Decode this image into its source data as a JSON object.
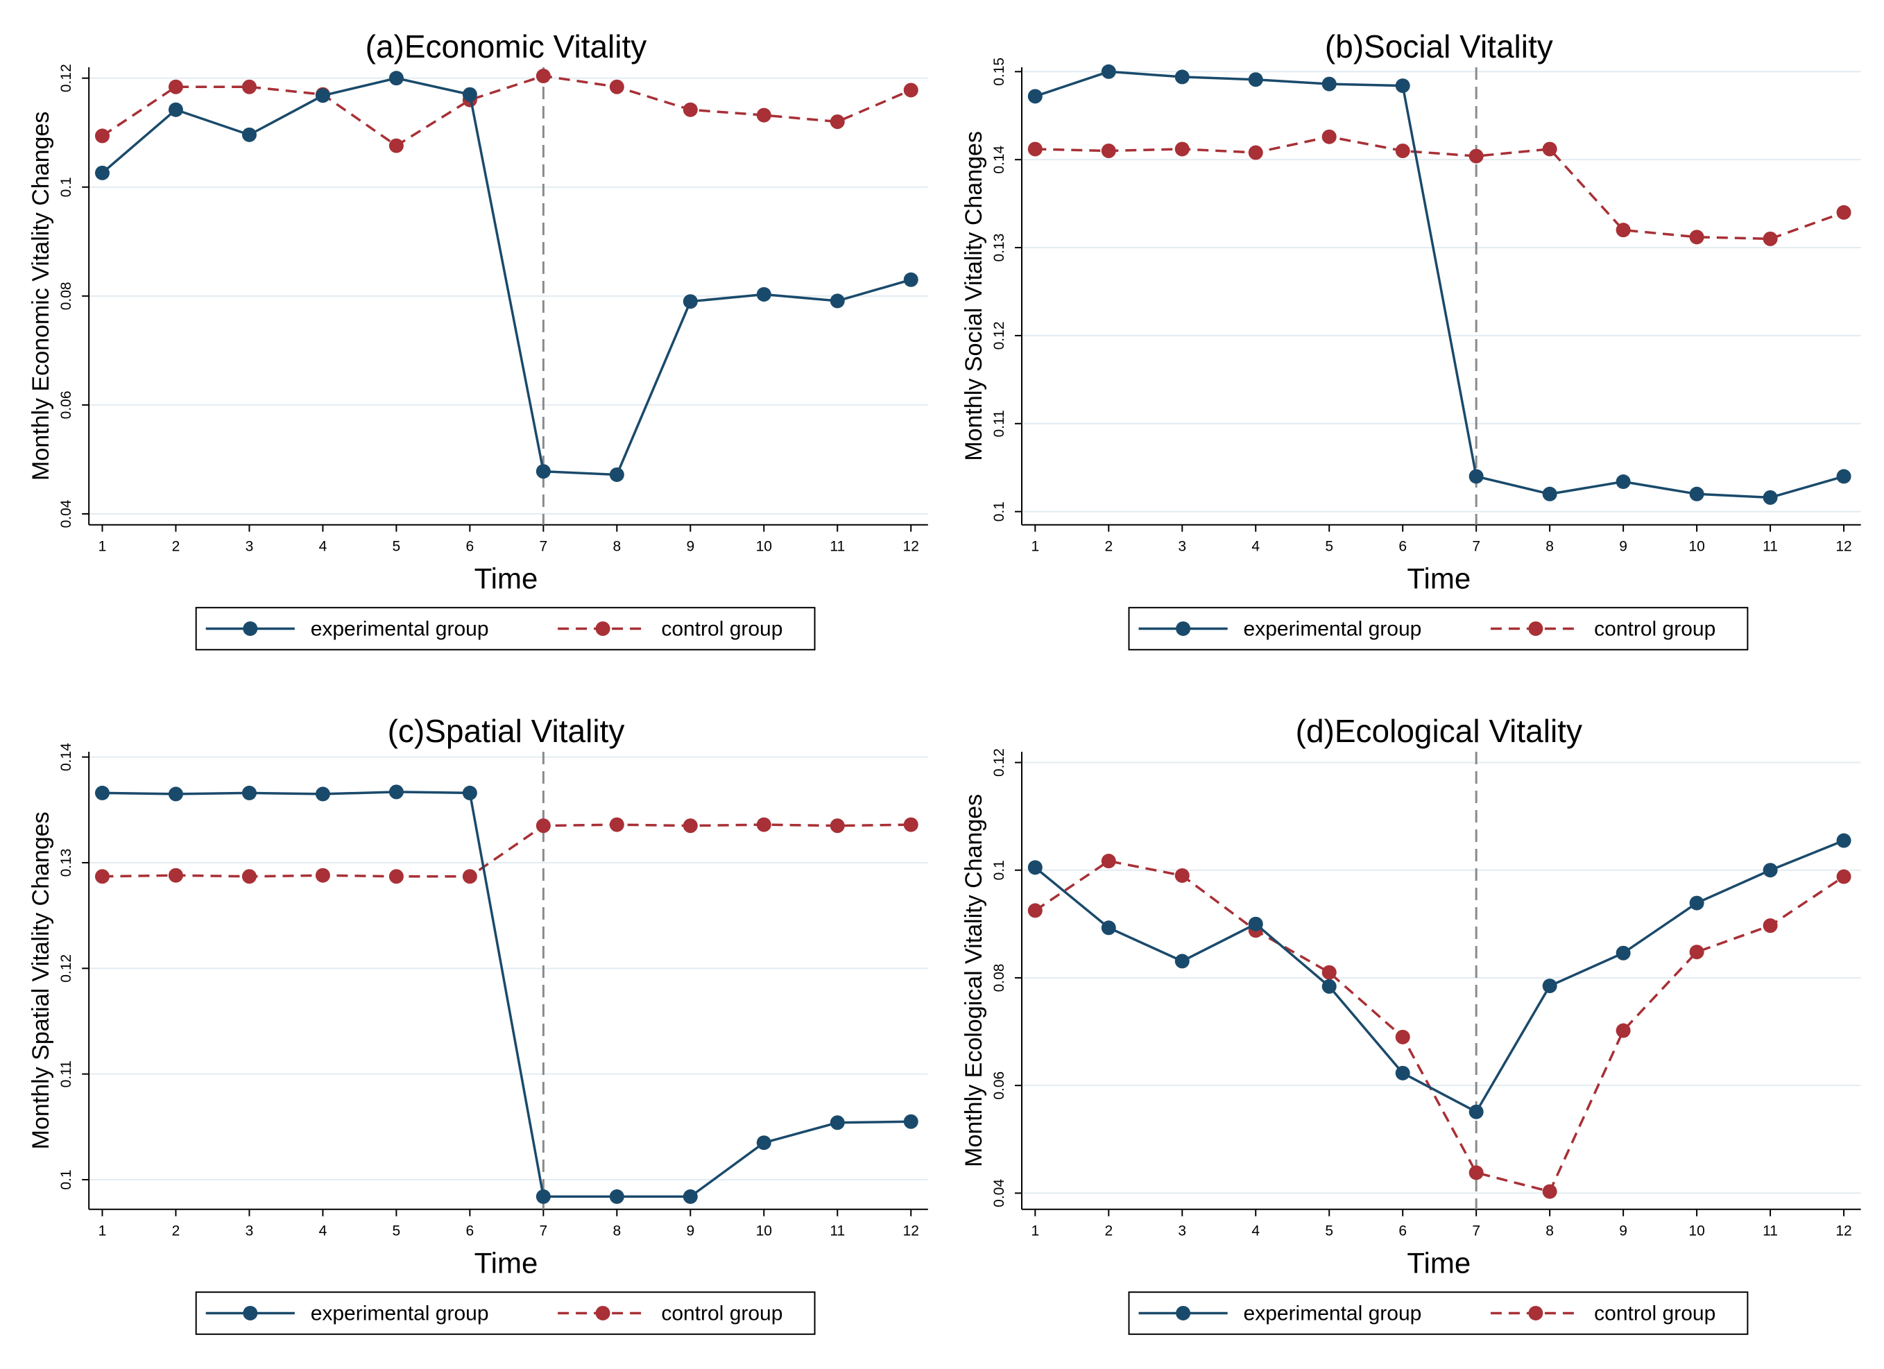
{
  "colors": {
    "experimental": "#1a4a6b",
    "control": "#a83036",
    "grid": "#e3ecf1",
    "vline": "#8a8a8a"
  },
  "legend": {
    "experimental_label": "experimental group",
    "control_label": "control group"
  },
  "chart_data": [
    {
      "type": "line",
      "title": "(a)Economic Vitality",
      "xlabel": "Time",
      "ylabel": "Monthly Economic Vitality Changes",
      "x": [
        1,
        2,
        3,
        4,
        5,
        6,
        7,
        8,
        9,
        10,
        11,
        12
      ],
      "ylim": [
        0.038,
        0.122
      ],
      "yticks": [
        0.04,
        0.06,
        0.08,
        0.1,
        0.12
      ],
      "ytick_labels": [
        "0.04",
        "0.06",
        "0.08",
        "0.1",
        "0.12"
      ],
      "xtick_labels": [
        "1",
        "2",
        "3",
        "4",
        "5",
        "6",
        "7",
        "8",
        "9",
        "10",
        "11",
        "12"
      ],
      "vline_x": 7,
      "series": [
        {
          "name": "experimental group",
          "key": "experimental",
          "values": [
            0.1026,
            0.1142,
            0.1096,
            0.1168,
            0.12,
            0.117,
            0.0478,
            0.0472,
            0.079,
            0.0803,
            0.0791,
            0.083
          ]
        },
        {
          "name": "control group",
          "key": "control",
          "values": [
            0.1094,
            0.1184,
            0.1184,
            0.117,
            0.1076,
            0.116,
            0.1204,
            0.1184,
            0.1142,
            0.1132,
            0.112,
            0.1178
          ]
        }
      ]
    },
    {
      "type": "line",
      "title": "(b)Social Vitality",
      "xlabel": "Time",
      "ylabel": "Monthly Social Vitality Changes",
      "x": [
        1,
        2,
        3,
        4,
        5,
        6,
        7,
        8,
        9,
        10,
        11,
        12
      ],
      "ylim": [
        0.0985,
        0.1505
      ],
      "yticks": [
        0.1,
        0.11,
        0.12,
        0.13,
        0.14,
        0.15
      ],
      "ytick_labels": [
        "0.1",
        "0.11",
        "0.12",
        "0.13",
        "0.14",
        "0.15"
      ],
      "xtick_labels": [
        "1",
        "2",
        "3",
        "4",
        "5",
        "6",
        "7",
        "8",
        "9",
        "10",
        "11",
        "12"
      ],
      "vline_x": 7,
      "series": [
        {
          "name": "experimental group",
          "key": "experimental",
          "values": [
            0.1472,
            0.15,
            0.1494,
            0.1491,
            0.1486,
            0.1484,
            0.104,
            0.102,
            0.1034,
            0.102,
            0.1016,
            0.104
          ]
        },
        {
          "name": "control group",
          "key": "control",
          "values": [
            0.1412,
            0.141,
            0.1412,
            0.1408,
            0.1426,
            0.141,
            0.1404,
            0.1412,
            0.132,
            0.1312,
            0.131,
            0.134
          ]
        }
      ]
    },
    {
      "type": "line",
      "title": "(c)Spatial Vitality",
      "xlabel": "Time",
      "ylabel": "Monthly Spatial Vitality Changes",
      "x": [
        1,
        2,
        3,
        4,
        5,
        6,
        7,
        8,
        9,
        10,
        11,
        12
      ],
      "ylim": [
        0.0972,
        0.1405
      ],
      "yticks": [
        0.1,
        0.11,
        0.12,
        0.13,
        0.14
      ],
      "ytick_labels": [
        "0.1",
        "0.11",
        "0.12",
        "0.13",
        "0.14"
      ],
      "xtick_labels": [
        "1",
        "2",
        "3",
        "4",
        "5",
        "6",
        "7",
        "8",
        "9",
        "10",
        "11",
        "12"
      ],
      "vline_x": 7,
      "series": [
        {
          "name": "experimental group",
          "key": "experimental",
          "values": [
            0.1366,
            0.1365,
            0.1366,
            0.1365,
            0.1367,
            0.1366,
            0.0984,
            0.0984,
            0.0984,
            0.1035,
            0.1054,
            0.1055
          ]
        },
        {
          "name": "control group",
          "key": "control",
          "values": [
            0.1287,
            0.1288,
            0.1287,
            0.1288,
            0.1287,
            0.1287,
            0.1335,
            0.1336,
            0.1335,
            0.1336,
            0.1335,
            0.1336
          ]
        }
      ]
    },
    {
      "type": "line",
      "title": "(d)Ecological Vitality",
      "xlabel": "Time",
      "ylabel": "Monthly Ecological Vitality Changes",
      "x": [
        1,
        2,
        3,
        4,
        5,
        6,
        7,
        8,
        9,
        10,
        11,
        12
      ],
      "ylim": [
        0.037,
        0.122
      ],
      "yticks": [
        0.04,
        0.06,
        0.08,
        0.1,
        0.12
      ],
      "ytick_labels": [
        "0.04",
        "0.06",
        "0.08",
        "0.1",
        "0.12"
      ],
      "xtick_labels": [
        "1",
        "2",
        "3",
        "4",
        "5",
        "6",
        "7",
        "8",
        "9",
        "10",
        "11",
        "12"
      ],
      "vline_x": 7,
      "series": [
        {
          "name": "experimental group",
          "key": "experimental",
          "values": [
            0.1005,
            0.0893,
            0.0831,
            0.09,
            0.0784,
            0.0623,
            0.0551,
            0.0785,
            0.0846,
            0.0939,
            0.1,
            0.1055
          ]
        },
        {
          "name": "control group",
          "key": "control",
          "values": [
            0.0925,
            0.1017,
            0.099,
            0.0888,
            0.081,
            0.069,
            0.0438,
            0.0403,
            0.0702,
            0.0848,
            0.0897,
            0.0988
          ]
        }
      ]
    }
  ]
}
